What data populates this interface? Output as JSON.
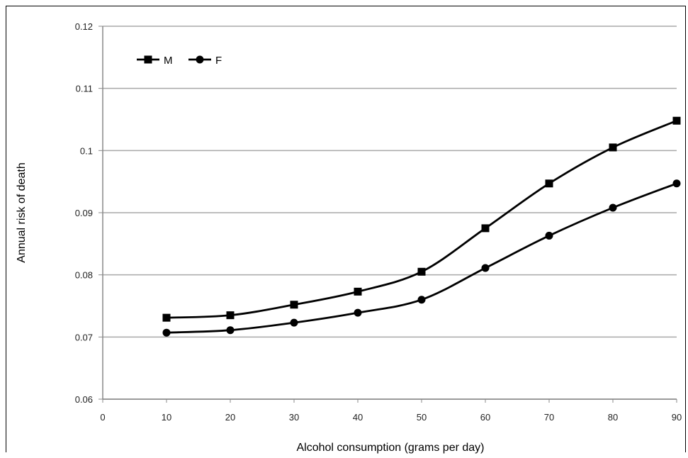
{
  "chart_data": {
    "type": "line",
    "xlabel": "Alcohol consumption (grams per day)",
    "ylabel": "Annual risk of death",
    "xlim": [
      0,
      90
    ],
    "ylim": [
      0.06,
      0.12
    ],
    "x_ticks": [
      "0",
      "10",
      "20",
      "30",
      "40",
      "50",
      "60",
      "70",
      "80",
      "90"
    ],
    "y_ticks": [
      "0.06",
      "0.07",
      "0.08",
      "0.09",
      "0.1",
      "0.11",
      "0.12"
    ],
    "x": [
      10,
      20,
      30,
      40,
      50,
      60,
      70,
      80,
      90
    ],
    "grid": true,
    "legend_placement": "top-left",
    "series": [
      {
        "name": "M",
        "marker": "square",
        "values": [
          0.0731,
          0.0735,
          0.0752,
          0.0773,
          0.0805,
          0.0875,
          0.0947,
          0.1005,
          0.1048
        ]
      },
      {
        "name": "F",
        "marker": "circle",
        "values": [
          0.0707,
          0.0711,
          0.0723,
          0.0739,
          0.076,
          0.0811,
          0.0863,
          0.0908,
          0.0947
        ]
      }
    ]
  }
}
